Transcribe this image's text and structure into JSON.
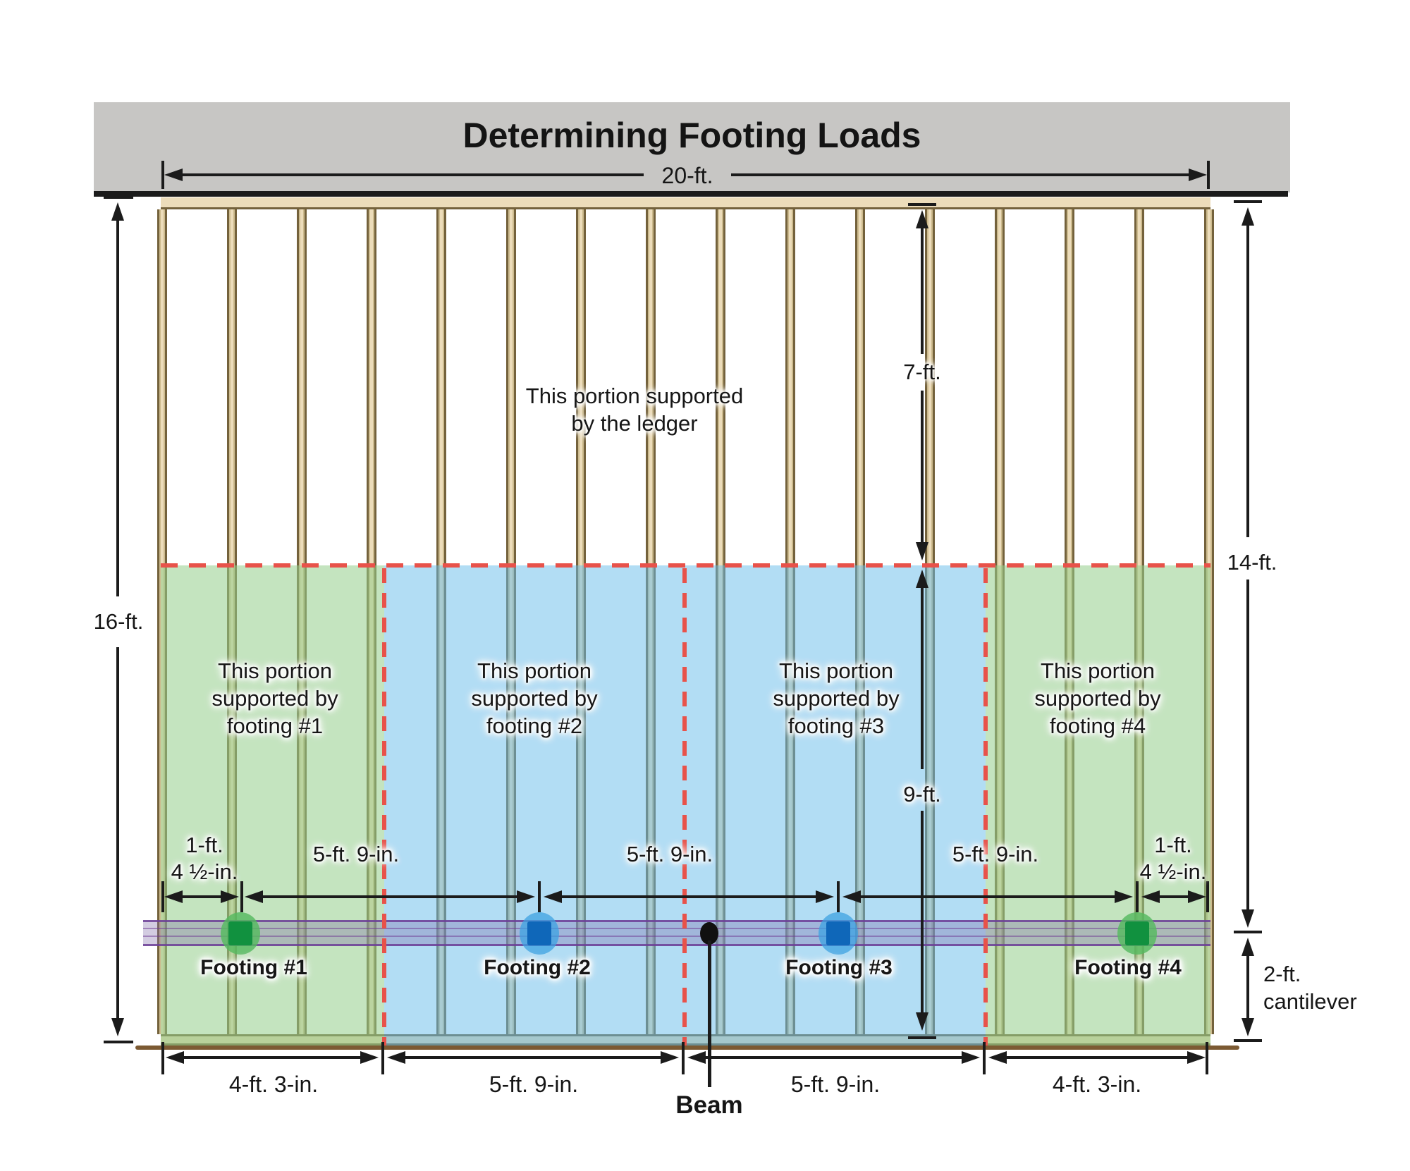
{
  "title": "Determining Footing Loads",
  "top_dimension": "20-ft.",
  "left_dimension": "16-ft.",
  "ledger_zone": {
    "note_line1": "This portion supported",
    "note_line2": "by the ledger",
    "depth_label": "7-ft."
  },
  "beam_zone": {
    "depth_label": "9-ft."
  },
  "right_dimensions": {
    "to_beam": "14-ft.",
    "cantilever_line1": "2-ft.",
    "cantilever_line2": "cantilever"
  },
  "zones": [
    {
      "label_line1": "This portion",
      "label_line2": "supported by",
      "label_line3": "footing #1",
      "footing_label": "Footing #1",
      "footing_color": "green"
    },
    {
      "label_line1": "This portion",
      "label_line2": "supported by",
      "label_line3": "footing #2",
      "footing_label": "Footing #2",
      "footing_color": "blue"
    },
    {
      "label_line1": "This portion",
      "label_line2": "supported by",
      "label_line3": "footing #3",
      "footing_label": "Footing #3",
      "footing_color": "blue"
    },
    {
      "label_line1": "This portion",
      "label_line2": "supported by",
      "label_line3": "footing #4",
      "footing_label": "Footing #4",
      "footing_color": "green"
    }
  ],
  "footing_dimensions": {
    "left_offset_line1": "1-ft.",
    "left_offset_line2": "4 ½-in.",
    "spacing_labels": [
      "5-ft. 9-in.",
      "5-ft. 9-in.",
      "5-ft. 9-in."
    ],
    "right_offset_line1": "1-ft.",
    "right_offset_line2": "4 ½-in."
  },
  "bottom_dimensions": [
    "4-ft. 3-in.",
    "5-ft. 9-in.",
    "5-ft. 9-in.",
    "4-ft. 3-in."
  ],
  "beam_label": "Beam",
  "colors": {
    "title_bar_gray": "#c7c6c4",
    "zone_green": "#cae6c5",
    "zone_blue": "#bee4f6",
    "dashed_red": "#e8524a",
    "beam_purple": "#8e6bb0",
    "footing_green": "#11913f",
    "footing_blue": "#0f67b9",
    "joist_tan": "#ecdcba"
  }
}
